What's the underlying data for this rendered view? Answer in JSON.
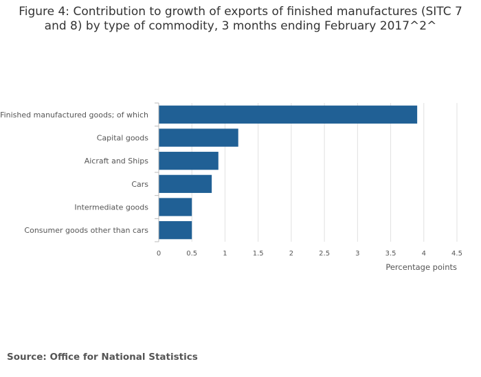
{
  "source": "Source: Office for National Statistics",
  "chart_data": {
    "type": "bar",
    "orientation": "horizontal",
    "title": "Figure 4: Contribution to growth of exports of finished manufactures (SITC 7 and 8) by type of commodity, 3 months ending February 2017^2^",
    "categories": [
      "Finished manufactured goods; of which",
      "Capital goods",
      "Aicraft and Ships",
      "Cars",
      "Intermediate goods",
      "Consumer goods other than cars"
    ],
    "values": [
      3.9,
      1.2,
      0.9,
      0.8,
      0.5,
      0.5
    ],
    "xlabel": "Percentage points",
    "ylabel": "",
    "xlim": [
      0,
      4.5
    ],
    "xticks": [
      "0",
      "0.5",
      "1",
      "1.5",
      "2",
      "2.5",
      "3",
      "3.5",
      "4",
      "4.5"
    ],
    "grid": true,
    "bar_color": "#206095",
    "grid_color": "#e0e0e0",
    "axis_color": "#bbbbbb"
  }
}
